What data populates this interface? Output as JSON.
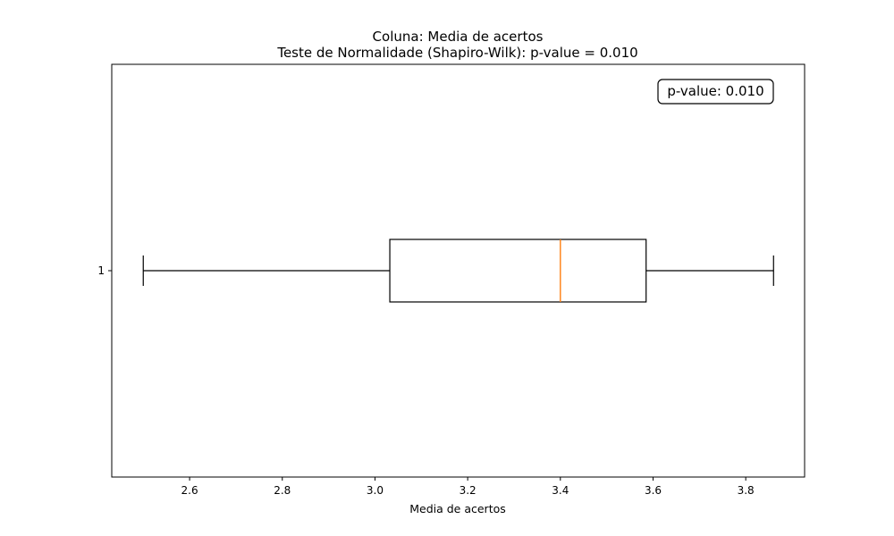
{
  "chart_data": {
    "type": "boxplot",
    "orientation": "horizontal",
    "title": "Coluna: Media de acertos",
    "subtitle": "Teste de Normalidade (Shapiro-Wilk): p-value = 0.010",
    "xlabel": "Media de acertos",
    "ylabel": "",
    "xlim": [
      2.432,
      3.927
    ],
    "x_ticks": [
      "2.6",
      "2.8",
      "3.0",
      "3.2",
      "3.4",
      "3.6",
      "3.8"
    ],
    "y_ticks": [
      "1"
    ],
    "grid": false,
    "boxes": [
      {
        "category": "1",
        "whisker_low": 2.5,
        "q1": 3.032,
        "median": 3.4,
        "q3": 3.585,
        "whisker_high": 3.86
      }
    ],
    "annotation": {
      "text": "p-value: 0.010",
      "placement": "top-right"
    },
    "colors": {
      "box": "#000000",
      "median": "#ff7f0e",
      "background": "#ffffff"
    }
  }
}
